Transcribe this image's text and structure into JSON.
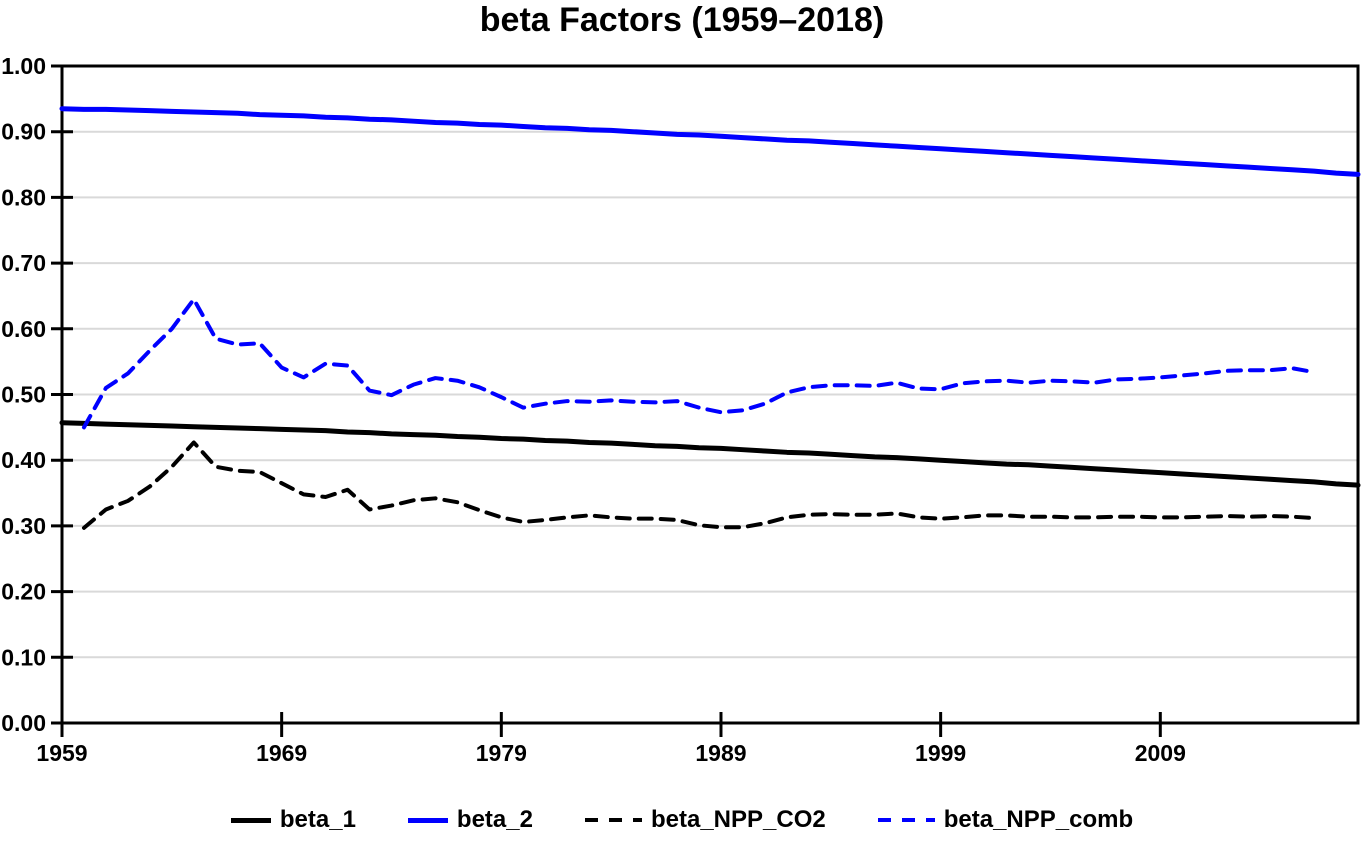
{
  "page": {
    "background": "#ffffff"
  },
  "chart_data": {
    "type": "line",
    "title": "beta Factors (1959–2018)",
    "xlabel": "",
    "ylabel": "",
    "xlim": [
      1959,
      2018
    ],
    "ylim": [
      0.0,
      1.0
    ],
    "grid": "horizontal",
    "legend_position": "bottom",
    "x_ticks": [
      1959,
      1969,
      1979,
      1989,
      1999,
      2009
    ],
    "x_tick_labels": [
      "1959",
      "1969",
      "1979",
      "1989",
      "1999",
      "2009"
    ],
    "y_ticks": [
      0.0,
      0.1,
      0.2,
      0.3,
      0.4,
      0.5,
      0.6,
      0.7,
      0.8,
      0.9,
      1.0
    ],
    "y_tick_labels": [
      "0.00",
      "0.10",
      "0.20",
      "0.30",
      "0.40",
      "0.50",
      "0.60",
      "0.70",
      "0.80",
      "0.90",
      "1.00"
    ],
    "colors": {
      "black": "#000000",
      "blue": "#0000FF",
      "gridline": "#D9D9D9",
      "axis": "#000000"
    },
    "series": [
      {
        "name": "beta_1",
        "color": "#000000",
        "line_style": "solid",
        "year_start": 1959,
        "x_step": 1,
        "values": [
          0.457,
          0.456,
          0.455,
          0.454,
          0.453,
          0.452,
          0.451,
          0.45,
          0.449,
          0.448,
          0.447,
          0.446,
          0.445,
          0.443,
          0.442,
          0.44,
          0.439,
          0.438,
          0.436,
          0.435,
          0.433,
          0.432,
          0.43,
          0.429,
          0.427,
          0.426,
          0.424,
          0.422,
          0.421,
          0.419,
          0.418,
          0.416,
          0.414,
          0.412,
          0.411,
          0.409,
          0.407,
          0.405,
          0.404,
          0.402,
          0.4,
          0.398,
          0.396,
          0.394,
          0.393,
          0.391,
          0.389,
          0.387,
          0.385,
          0.383,
          0.381,
          0.379,
          0.377,
          0.375,
          0.373,
          0.371,
          0.369,
          0.367,
          0.364,
          0.362
        ]
      },
      {
        "name": "beta_2",
        "color": "#0000FF",
        "line_style": "solid",
        "year_start": 1959,
        "x_step": 1,
        "values": [
          0.935,
          0.934,
          0.934,
          0.933,
          0.932,
          0.931,
          0.93,
          0.929,
          0.928,
          0.926,
          0.925,
          0.924,
          0.922,
          0.921,
          0.919,
          0.918,
          0.916,
          0.914,
          0.913,
          0.911,
          0.91,
          0.908,
          0.906,
          0.905,
          0.903,
          0.902,
          0.9,
          0.898,
          0.896,
          0.895,
          0.893,
          0.891,
          0.889,
          0.887,
          0.886,
          0.884,
          0.882,
          0.88,
          0.878,
          0.876,
          0.874,
          0.872,
          0.87,
          0.868,
          0.866,
          0.864,
          0.862,
          0.86,
          0.858,
          0.856,
          0.854,
          0.852,
          0.85,
          0.848,
          0.846,
          0.844,
          0.842,
          0.84,
          0.837,
          0.835
        ]
      },
      {
        "name": "beta_NPP_CO2",
        "color": "#000000",
        "line_style": "dashed",
        "year_start": 1960,
        "x_step": 1,
        "values": [
          0.297,
          0.325,
          0.338,
          0.36,
          0.39,
          0.427,
          0.39,
          0.384,
          0.382,
          0.365,
          0.348,
          0.344,
          0.355,
          0.325,
          0.331,
          0.339,
          0.342,
          0.336,
          0.324,
          0.313,
          0.306,
          0.309,
          0.313,
          0.316,
          0.313,
          0.311,
          0.311,
          0.309,
          0.301,
          0.298,
          0.298,
          0.304,
          0.313,
          0.317,
          0.318,
          0.317,
          0.317,
          0.319,
          0.313,
          0.311,
          0.313,
          0.316,
          0.316,
          0.314,
          0.314,
          0.313,
          0.313,
          0.314,
          0.314,
          0.313,
          0.313,
          0.314,
          0.315,
          0.314,
          0.315,
          0.314,
          0.312
        ]
      },
      {
        "name": "beta_NPP_comb",
        "color": "#0000FF",
        "line_style": "dashed",
        "year_start": 1960,
        "x_step": 1,
        "values": [
          0.45,
          0.51,
          0.532,
          0.567,
          0.6,
          0.645,
          0.585,
          0.576,
          0.578,
          0.541,
          0.526,
          0.547,
          0.544,
          0.506,
          0.499,
          0.515,
          0.525,
          0.521,
          0.511,
          0.496,
          0.48,
          0.486,
          0.49,
          0.489,
          0.491,
          0.489,
          0.488,
          0.49,
          0.48,
          0.473,
          0.476,
          0.486,
          0.503,
          0.511,
          0.514,
          0.514,
          0.513,
          0.518,
          0.509,
          0.508,
          0.517,
          0.52,
          0.521,
          0.518,
          0.521,
          0.52,
          0.518,
          0.523,
          0.524,
          0.526,
          0.529,
          0.532,
          0.536,
          0.537,
          0.537,
          0.54,
          0.534
        ]
      }
    ]
  }
}
